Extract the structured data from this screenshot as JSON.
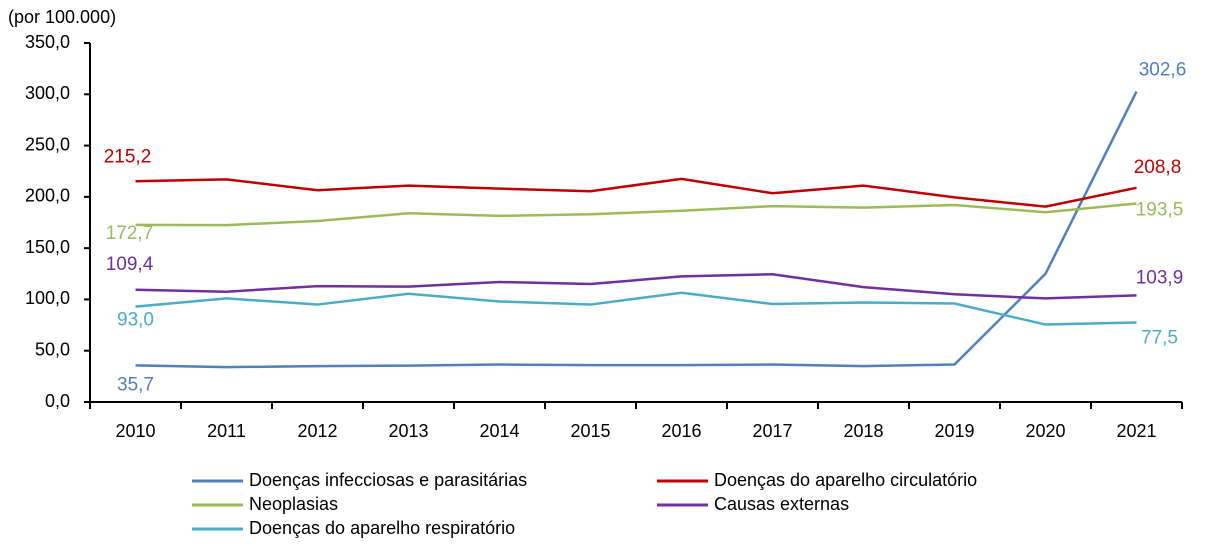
{
  "chart_data": {
    "type": "line",
    "y_label": "(por 100.000)",
    "categories": [
      "2010",
      "2011",
      "2012",
      "2013",
      "2014",
      "2015",
      "2016",
      "2017",
      "2018",
      "2019",
      "2020",
      "2021"
    ],
    "ylim": [
      0,
      350
    ],
    "yticks": [
      {
        "value": 0,
        "label": "0,0"
      },
      {
        "value": 50,
        "label": "50,0"
      },
      {
        "value": 100,
        "label": "100,0"
      },
      {
        "value": 150,
        "label": "150,0"
      },
      {
        "value": 200,
        "label": "200,0"
      },
      {
        "value": 250,
        "label": "250,0"
      },
      {
        "value": 300,
        "label": "300,0"
      },
      {
        "value": 350,
        "label": "350,0"
      }
    ],
    "series": [
      {
        "name": "Doenças infecciosas e parasitárias",
        "color": "#4f81bd",
        "values": [
          35.7,
          34,
          35,
          35.5,
          36.5,
          36,
          36,
          36.5,
          35,
          36.5,
          125,
          302.6
        ],
        "value_labels": [
          "35,7",
          null,
          null,
          null,
          null,
          null,
          null,
          null,
          null,
          null,
          null,
          "302,6"
        ]
      },
      {
        "name": "Doenças do aparelho circulatório",
        "color": "#c00000",
        "values": [
          215.2,
          217,
          206.5,
          211,
          208,
          205.5,
          217.5,
          203.5,
          211,
          199.5,
          190.5,
          208.8
        ],
        "value_labels": [
          "215,2",
          null,
          null,
          null,
          null,
          null,
          null,
          null,
          null,
          null,
          null,
          "208,8"
        ]
      },
      {
        "name": "Neoplasias",
        "color": "#9bbb59",
        "values": [
          172.7,
          172.5,
          176.5,
          184,
          181.5,
          183,
          186.5,
          191,
          189.5,
          192,
          185,
          193.5
        ],
        "value_labels": [
          "172,7",
          null,
          null,
          null,
          null,
          null,
          null,
          null,
          null,
          null,
          null,
          "193,5"
        ]
      },
      {
        "name": "Causas externas",
        "color": "#7030a0",
        "values": [
          109.4,
          107.5,
          113,
          112.5,
          117,
          115,
          122.5,
          124.5,
          112,
          105,
          101,
          103.9
        ],
        "value_labels": [
          "109,4",
          null,
          null,
          null,
          null,
          null,
          null,
          null,
          null,
          null,
          null,
          "103,9"
        ]
      },
      {
        "name": "Doenças do aparelho respiratório",
        "color": "#4bacc6",
        "values": [
          93.0,
          101,
          95,
          105.5,
          98,
          95,
          106.5,
          95.5,
          97,
          96,
          75.5,
          77.5
        ],
        "value_labels": [
          "93,0",
          null,
          null,
          null,
          null,
          null,
          null,
          null,
          null,
          null,
          null,
          "77,5"
        ]
      }
    ]
  }
}
